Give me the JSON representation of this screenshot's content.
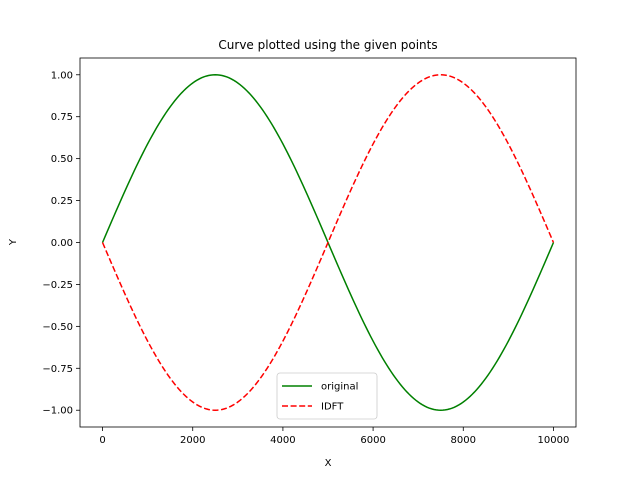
{
  "chart_data": {
    "type": "line",
    "title": "Curve plotted using the given points",
    "xlabel": "X",
    "ylabel": "Y",
    "xlim": [
      -500,
      10500
    ],
    "ylim": [
      -1.1,
      1.1
    ],
    "x_ticks": [
      0,
      2000,
      4000,
      6000,
      8000,
      10000
    ],
    "x_tick_labels": [
      "0",
      "2000",
      "4000",
      "6000",
      "8000",
      "10000"
    ],
    "y_ticks": [
      1.0,
      0.75,
      0.5,
      0.25,
      0.0,
      -0.25,
      -0.5,
      -0.75,
      -1.0
    ],
    "y_tick_labels": [
      "1.00",
      "0.75",
      "0.50",
      "0.25",
      "0.00",
      "−0.25",
      "−0.50",
      "−0.75",
      "−1.00"
    ],
    "grid": false,
    "legend_position": "lower-center",
    "series": [
      {
        "name": "original",
        "color": "#008000",
        "style": "solid",
        "x": [
          0,
          500,
          1000,
          1500,
          2000,
          2500,
          3000,
          3500,
          4000,
          4500,
          5000,
          5500,
          6000,
          6500,
          7000,
          7500,
          8000,
          8500,
          9000,
          9500,
          10000
        ],
        "y": [
          0,
          0.309,
          0.588,
          0.809,
          0.951,
          1.0,
          0.951,
          0.809,
          0.588,
          0.309,
          0,
          -0.309,
          -0.588,
          -0.809,
          -0.951,
          -1.0,
          -0.951,
          -0.809,
          -0.588,
          -0.309,
          0
        ]
      },
      {
        "name": "IDFT",
        "color": "#ff0000",
        "style": "dashed",
        "x": [
          0,
          500,
          1000,
          1500,
          2000,
          2500,
          3000,
          3500,
          4000,
          4500,
          5000,
          5500,
          6000,
          6500,
          7000,
          7500,
          8000,
          8500,
          9000,
          9500,
          10000
        ],
        "y": [
          0,
          -0.309,
          -0.588,
          -0.809,
          -0.951,
          -1.0,
          -0.951,
          -0.809,
          -0.588,
          -0.309,
          0,
          0.309,
          0.588,
          0.809,
          0.951,
          1.0,
          0.951,
          0.809,
          0.588,
          0.309,
          0
        ]
      }
    ]
  }
}
